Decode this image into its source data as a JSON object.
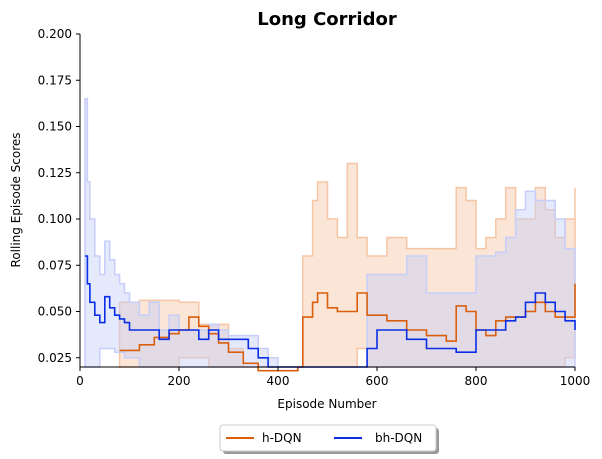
{
  "chart_data": {
    "type": "line",
    "title": "Long Corridor",
    "xlabel": "Episode Number",
    "ylabel": "Rolling Episode Scores",
    "xlim": [
      0,
      1000
    ],
    "ylim": [
      0.02,
      0.2
    ],
    "xticks": [
      0,
      200,
      400,
      600,
      800,
      1000
    ],
    "yticks": [
      0.025,
      0.05,
      0.075,
      0.1,
      0.125,
      0.15,
      0.175,
      0.2
    ],
    "xtick_labels": [
      "0",
      "200",
      "400",
      "600",
      "800",
      "1000"
    ],
    "ytick_labels": [
      "0.025",
      "0.050",
      "0.075",
      "0.100",
      "0.125",
      "0.150",
      "0.175",
      "0.200"
    ],
    "grid": false,
    "legend_position": "bottom-center, below plot",
    "series": [
      {
        "name": "h-DQN",
        "color": "#d95f0e",
        "band_color": "#f5c6a5",
        "x": [
          80,
          120,
          150,
          180,
          200,
          220,
          240,
          260,
          280,
          300,
          330,
          360,
          400,
          440,
          450,
          470,
          480,
          500,
          520,
          540,
          560,
          580,
          620,
          660,
          700,
          740,
          760,
          780,
          800,
          820,
          840,
          860,
          880,
          900,
          920,
          940,
          960,
          980,
          1000
        ],
        "mean": [
          0.029,
          0.032,
          0.036,
          0.038,
          0.04,
          0.047,
          0.042,
          0.038,
          0.033,
          0.028,
          0.022,
          0.018,
          0.018,
          0.02,
          0.047,
          0.055,
          0.06,
          0.052,
          0.05,
          0.05,
          0.06,
          0.048,
          0.045,
          0.04,
          0.037,
          0.034,
          0.053,
          0.05,
          0.04,
          0.037,
          0.045,
          0.047,
          0.047,
          0.05,
          0.055,
          0.05,
          0.047,
          0.047,
          0.065
        ],
        "upper": [
          0.055,
          0.056,
          0.056,
          0.056,
          0.055,
          0.055,
          0.043,
          0.043,
          0.043,
          0.03,
          0.02,
          0.02,
          0.02,
          0.02,
          0.08,
          0.11,
          0.12,
          0.1,
          0.09,
          0.13,
          0.09,
          0.08,
          0.09,
          0.084,
          0.084,
          0.084,
          0.117,
          0.11,
          0.084,
          0.09,
          0.1,
          0.117,
          0.1,
          0.1,
          0.117,
          0.105,
          0.09,
          0.1,
          0.117
        ],
        "lower": [
          0.02,
          0.02,
          0.02,
          0.02,
          0.02,
          0.025,
          0.025,
          0.025,
          0.02,
          0.02,
          0.02,
          0.02,
          0.02,
          0.02,
          0.02,
          0.02,
          0.02,
          0.02,
          0.02,
          0.02,
          0.02,
          0.03,
          0.02,
          0.02,
          0.02,
          0.02,
          0.02,
          0.02,
          0.02,
          0.02,
          0.02,
          0.02,
          0.02,
          0.02,
          0.02,
          0.02,
          0.02,
          0.02,
          0.025
        ]
      },
      {
        "name": "bh-DQN",
        "color": "#0a2ee8",
        "band_color": "#c6cef9",
        "x": [
          10,
          15,
          20,
          30,
          40,
          50,
          60,
          70,
          80,
          90,
          100,
          120,
          140,
          160,
          180,
          200,
          220,
          240,
          260,
          280,
          300,
          320,
          340,
          360,
          380,
          400,
          420,
          440,
          460,
          500,
          540,
          560,
          580,
          600,
          640,
          660,
          700,
          760,
          800,
          840,
          860,
          880,
          900,
          920,
          940,
          960,
          980,
          1000
        ],
        "mean": [
          0.08,
          0.065,
          0.055,
          0.048,
          0.044,
          0.058,
          0.052,
          0.048,
          0.046,
          0.044,
          0.04,
          0.04,
          0.04,
          0.035,
          0.04,
          0.04,
          0.04,
          0.035,
          0.04,
          0.035,
          0.035,
          0.035,
          0.03,
          0.025,
          0.02,
          0.02,
          0.02,
          0.02,
          0.02,
          0.02,
          0.02,
          0.02,
          0.03,
          0.04,
          0.04,
          0.035,
          0.03,
          0.028,
          0.04,
          0.04,
          0.045,
          0.047,
          0.055,
          0.06,
          0.055,
          0.05,
          0.045,
          0.04
        ],
        "upper": [
          0.165,
          0.12,
          0.1,
          0.08,
          0.07,
          0.088,
          0.078,
          0.07,
          0.065,
          0.06,
          0.055,
          0.048,
          0.055,
          0.04,
          0.048,
          0.04,
          0.04,
          0.04,
          0.043,
          0.04,
          0.037,
          0.037,
          0.037,
          0.03,
          0.025,
          0.02,
          0.02,
          0.02,
          0.02,
          0.02,
          0.02,
          0.02,
          0.07,
          0.07,
          0.07,
          0.08,
          0.06,
          0.06,
          0.08,
          0.082,
          0.09,
          0.105,
          0.115,
          0.11,
          0.11,
          0.1,
          0.084,
          0.068
        ],
        "lower": [
          0.02,
          0.02,
          0.02,
          0.02,
          0.02,
          0.03,
          0.03,
          0.03,
          0.028,
          0.028,
          0.025,
          0.025,
          0.02,
          0.02,
          0.02,
          0.02,
          0.02,
          0.02,
          0.02,
          0.02,
          0.02,
          0.02,
          0.02,
          0.02,
          0.02,
          0.02,
          0.02,
          0.02,
          0.02,
          0.02,
          0.02,
          0.02,
          0.02,
          0.02,
          0.02,
          0.02,
          0.02,
          0.02,
          0.02,
          0.02,
          0.02,
          0.02,
          0.02,
          0.02,
          0.02,
          0.02,
          0.02,
          0.02
        ]
      }
    ]
  }
}
